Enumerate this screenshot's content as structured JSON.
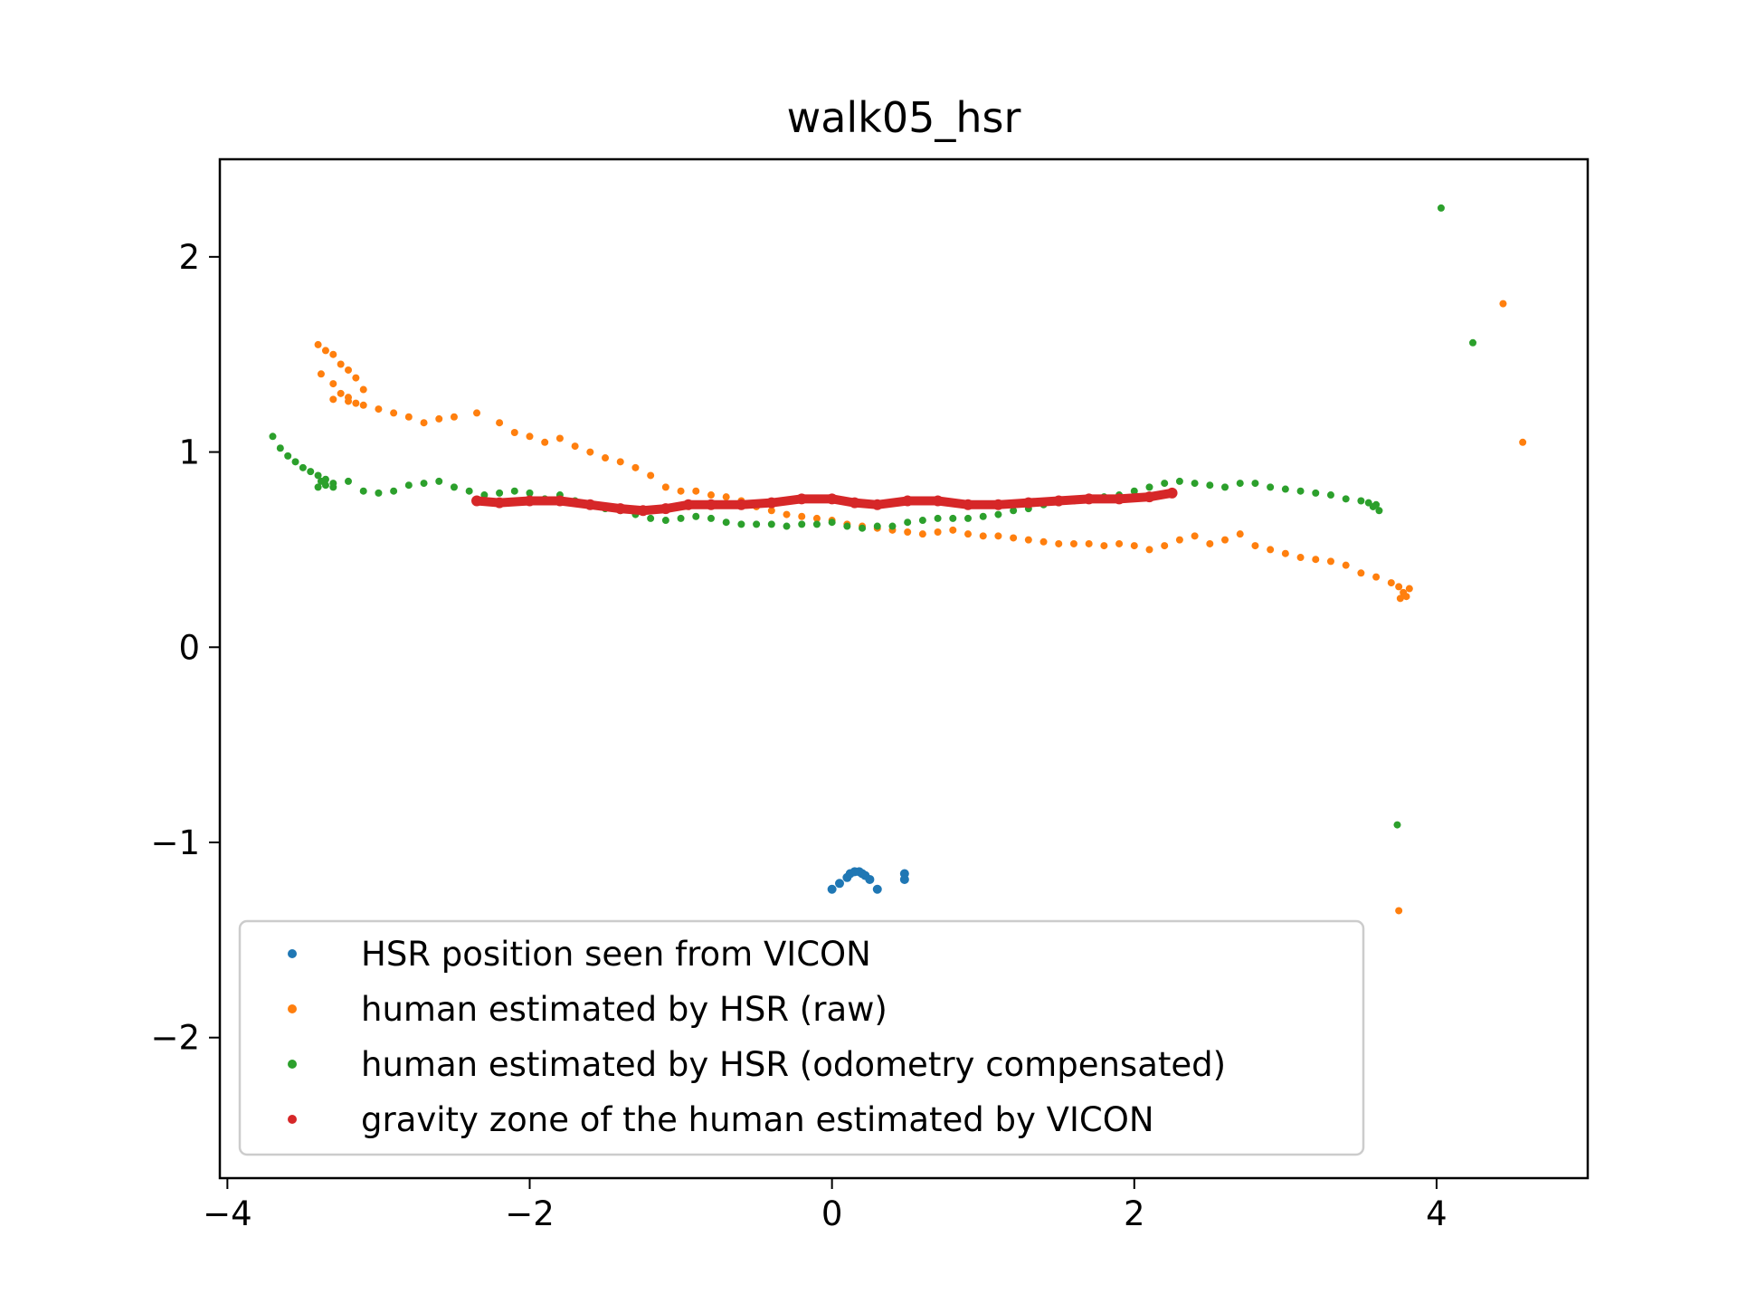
{
  "chart_data": {
    "type": "scatter",
    "title": "walk05_hsr",
    "xlabel": "",
    "ylabel": "",
    "xlim": [
      -4.05,
      5.0
    ],
    "ylim": [
      -2.72,
      2.5
    ],
    "xticks": [
      -4,
      -2,
      0,
      2,
      4
    ],
    "xtick_labels": [
      "−4",
      "−2",
      "0",
      "2",
      "4"
    ],
    "yticks": [
      -2,
      -1,
      0,
      1,
      2
    ],
    "ytick_labels": [
      "−2",
      "−1",
      "0",
      "1",
      "2"
    ],
    "grid": false,
    "legend_position": "lower-left",
    "series": [
      {
        "name": "HSR position seen from VICON",
        "color": "#1f77b4",
        "x": [
          0.0,
          0.05,
          0.1,
          0.12,
          0.15,
          0.18,
          0.2,
          0.22,
          0.25,
          0.3,
          0.48,
          0.48
        ],
        "y": [
          -1.24,
          -1.21,
          -1.18,
          -1.16,
          -1.15,
          -1.15,
          -1.16,
          -1.17,
          -1.19,
          -1.24,
          -1.16,
          -1.19
        ]
      },
      {
        "name": "human estimated by HSR (raw)",
        "color": "#ff7f0e",
        "x": [
          -3.4,
          -3.35,
          -3.3,
          -3.25,
          -3.2,
          -3.15,
          -3.1,
          -3.38,
          -3.3,
          -3.2,
          -3.15,
          -3.3,
          -3.25,
          -3.2,
          -3.1,
          -3.0,
          -2.9,
          -2.8,
          -2.7,
          -2.6,
          -2.5,
          -2.35,
          -2.2,
          -2.1,
          -2.0,
          -1.9,
          -1.8,
          -1.7,
          -1.6,
          -1.5,
          -1.4,
          -1.3,
          -1.2,
          -1.1,
          -1.0,
          -0.9,
          -0.8,
          -0.7,
          -0.6,
          -0.5,
          -0.4,
          -0.3,
          -0.2,
          -0.1,
          0.0,
          0.1,
          0.2,
          0.3,
          0.4,
          0.5,
          0.6,
          0.7,
          0.8,
          0.9,
          1.0,
          1.1,
          1.2,
          1.3,
          1.4,
          1.5,
          1.6,
          1.7,
          1.8,
          1.9,
          2.0,
          2.1,
          2.2,
          2.3,
          2.4,
          2.5,
          2.6,
          2.7,
          2.8,
          2.9,
          3.0,
          3.1,
          3.2,
          3.3,
          3.4,
          3.5,
          3.6,
          3.7,
          3.75,
          3.78,
          3.8,
          3.82,
          3.76,
          4.44,
          4.57,
          3.75
        ],
        "y": [
          1.55,
          1.52,
          1.5,
          1.45,
          1.42,
          1.38,
          1.32,
          1.4,
          1.35,
          1.28,
          1.25,
          1.27,
          1.3,
          1.26,
          1.24,
          1.22,
          1.2,
          1.18,
          1.15,
          1.17,
          1.18,
          1.2,
          1.15,
          1.1,
          1.08,
          1.05,
          1.07,
          1.03,
          1.0,
          0.97,
          0.95,
          0.92,
          0.88,
          0.82,
          0.8,
          0.8,
          0.78,
          0.77,
          0.75,
          0.72,
          0.7,
          0.68,
          0.67,
          0.66,
          0.65,
          0.63,
          0.62,
          0.61,
          0.6,
          0.59,
          0.58,
          0.59,
          0.6,
          0.58,
          0.57,
          0.57,
          0.56,
          0.55,
          0.54,
          0.53,
          0.53,
          0.53,
          0.52,
          0.53,
          0.52,
          0.5,
          0.52,
          0.55,
          0.57,
          0.53,
          0.55,
          0.58,
          0.52,
          0.5,
          0.48,
          0.46,
          0.45,
          0.44,
          0.42,
          0.38,
          0.36,
          0.33,
          0.31,
          0.28,
          0.26,
          0.3,
          0.25,
          1.76,
          1.05,
          -1.35
        ]
      },
      {
        "name": "human estimated by HSR (odometry compensated)",
        "color": "#2ca02c",
        "x": [
          -3.7,
          -3.65,
          -3.6,
          -3.55,
          -3.5,
          -3.45,
          -3.4,
          -3.38,
          -3.35,
          -3.3,
          -3.4,
          -3.35,
          -3.3,
          -3.2,
          -3.1,
          -3.0,
          -2.9,
          -2.8,
          -2.7,
          -2.6,
          -2.5,
          -2.4,
          -2.3,
          -2.2,
          -2.1,
          -2.0,
          -1.9,
          -1.8,
          -1.7,
          -1.6,
          -1.5,
          -1.4,
          -1.3,
          -1.2,
          -1.1,
          -1.0,
          -0.9,
          -0.8,
          -0.7,
          -0.6,
          -0.5,
          -0.4,
          -0.3,
          -0.2,
          -0.1,
          0.0,
          0.1,
          0.2,
          0.3,
          0.4,
          0.5,
          0.6,
          0.7,
          0.8,
          0.9,
          1.0,
          1.1,
          1.2,
          1.3,
          1.4,
          1.5,
          1.6,
          1.7,
          1.8,
          1.9,
          2.0,
          2.1,
          2.2,
          2.3,
          2.4,
          2.5,
          2.6,
          2.7,
          2.8,
          2.9,
          3.0,
          3.1,
          3.2,
          3.3,
          3.4,
          3.5,
          3.55,
          3.6,
          3.62,
          3.58,
          4.03,
          4.24,
          3.74
        ],
        "y": [
          1.08,
          1.02,
          0.98,
          0.95,
          0.92,
          0.9,
          0.88,
          0.85,
          0.83,
          0.82,
          0.82,
          0.86,
          0.84,
          0.85,
          0.8,
          0.79,
          0.8,
          0.83,
          0.84,
          0.85,
          0.82,
          0.8,
          0.78,
          0.79,
          0.8,
          0.79,
          0.76,
          0.78,
          0.75,
          0.73,
          0.71,
          0.7,
          0.68,
          0.66,
          0.65,
          0.66,
          0.67,
          0.66,
          0.64,
          0.63,
          0.63,
          0.63,
          0.62,
          0.63,
          0.63,
          0.64,
          0.62,
          0.61,
          0.62,
          0.62,
          0.64,
          0.65,
          0.66,
          0.66,
          0.66,
          0.67,
          0.68,
          0.7,
          0.71,
          0.73,
          0.74,
          0.75,
          0.76,
          0.77,
          0.78,
          0.8,
          0.82,
          0.84,
          0.85,
          0.84,
          0.83,
          0.82,
          0.84,
          0.84,
          0.82,
          0.81,
          0.8,
          0.79,
          0.78,
          0.76,
          0.75,
          0.74,
          0.73,
          0.7,
          0.72,
          2.25,
          1.56,
          -0.91
        ]
      },
      {
        "name": "gravity zone of the human estimated by VICON",
        "color": "#d62728",
        "x": [
          -2.35,
          -2.2,
          -2.0,
          -1.8,
          -1.6,
          -1.4,
          -1.25,
          -1.1,
          -0.95,
          -0.8,
          -0.6,
          -0.4,
          -0.2,
          0.0,
          0.15,
          0.3,
          0.5,
          0.7,
          0.9,
          1.1,
          1.3,
          1.5,
          1.7,
          1.9,
          2.1,
          2.25
        ],
        "y": [
          0.75,
          0.74,
          0.75,
          0.75,
          0.73,
          0.71,
          0.7,
          0.71,
          0.73,
          0.73,
          0.73,
          0.74,
          0.76,
          0.76,
          0.74,
          0.73,
          0.75,
          0.75,
          0.73,
          0.73,
          0.74,
          0.75,
          0.76,
          0.76,
          0.77,
          0.79
        ]
      }
    ]
  }
}
